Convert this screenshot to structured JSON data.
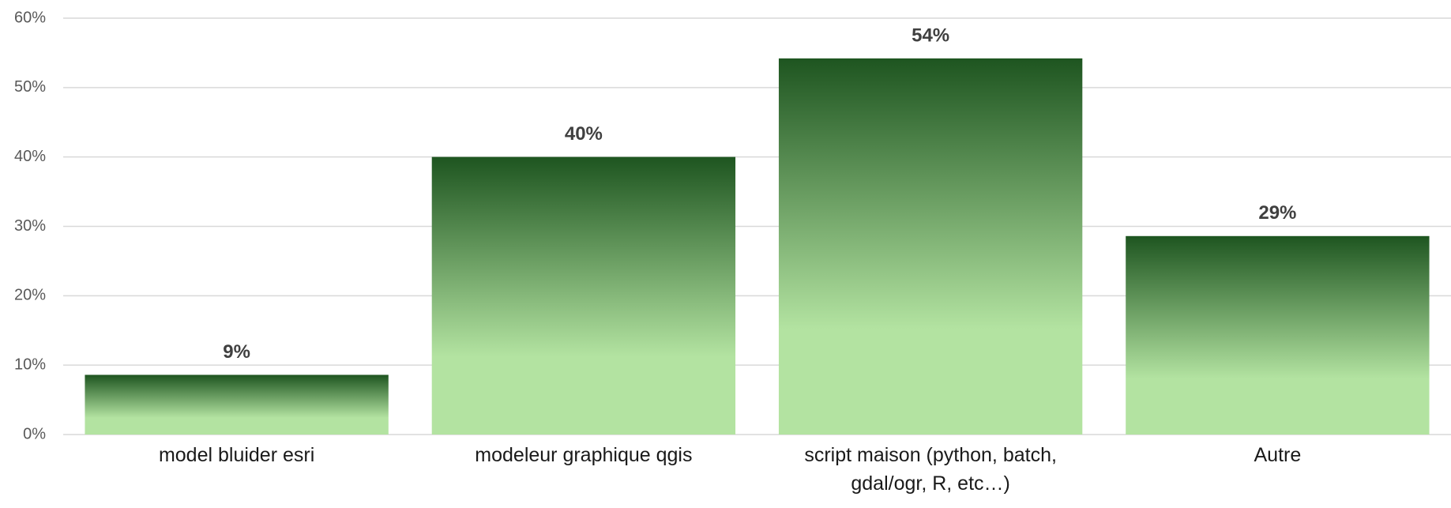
{
  "chart_data": {
    "type": "bar",
    "categories": [
      "model bluider esri",
      "modeleur graphique qgis",
      "script maison (python, batch, gdal/ogr, R, etc…)",
      "Autre"
    ],
    "values": [
      8.6,
      40,
      54.2,
      28.6
    ],
    "value_labels": [
      "9%",
      "40%",
      "54%",
      "29%"
    ],
    "color_top": "#1e5520",
    "color_bottom": "#b3e3a1",
    "ylim": [
      0,
      60
    ],
    "yticks": [
      {
        "value": 0,
        "label": "0%"
      },
      {
        "value": 10,
        "label": "10%"
      },
      {
        "value": 20,
        "label": "20%"
      },
      {
        "value": 30,
        "label": "30%"
      },
      {
        "value": 40,
        "label": "40%"
      },
      {
        "value": 50,
        "label": "50%"
      },
      {
        "value": 60,
        "label": "60%"
      }
    ],
    "grid": true
  }
}
